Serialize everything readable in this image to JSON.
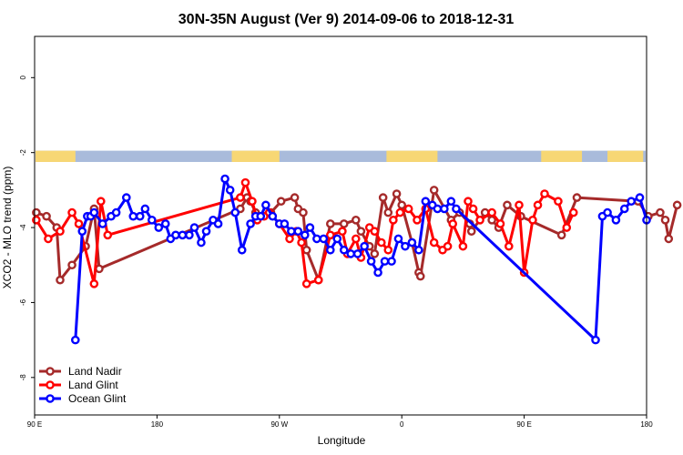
{
  "chart_data": {
    "type": "line",
    "title": "30N-35N August (Ver 9)   2014-09-06 to 2018-12-31",
    "xlabel": "Longitude",
    "ylabel": "XCO2 - MLO trend (ppm)",
    "x_tick_labels": [
      "90 E",
      "180",
      "90 W",
      "0",
      "90 E",
      "180"
    ],
    "y_tick_labels": [
      "0",
      "-2",
      "-4",
      "-6",
      "-8"
    ],
    "y_ticks": [
      0,
      -2,
      -4,
      -6,
      -8
    ],
    "xlim": [
      90,
      450
    ],
    "ylim": [
      -9.0,
      1.1
    ],
    "grid": false,
    "legend_position": "bottom-left",
    "land_strip": {
      "y_range": [
        -2.25,
        -1.95
      ],
      "land_color": "#F7D774",
      "ocean_color": "#A9BBDB",
      "land_segments": [
        [
          90,
          114
        ],
        [
          206,
          234
        ],
        [
          297,
          327
        ],
        [
          388,
          412
        ],
        [
          427,
          448
        ]
      ]
    },
    "series": [
      {
        "name": "Land Nadir",
        "color": "#A52A2A",
        "x": [
          91,
          97,
          103,
          105,
          112,
          120,
          125,
          128,
          211,
          215,
          217,
          220,
          222,
          229,
          235,
          243,
          245,
          248,
          250,
          257,
          264,
          272,
          279,
          282,
          287,
          290,
          295,
          298,
          303,
          306,
          312,
          316,
          317,
          325,
          335,
          340,
          346,
          347,
          355,
          359,
          363,
          368,
          376,
          400,
          409,
          445,
          451,
          458,
          461,
          463,
          468
        ],
        "y": [
          -3.6,
          -3.7,
          -4.0,
          -5.4,
          -5.0,
          -4.5,
          -3.5,
          -5.1,
          -3.5,
          -3.2,
          -3.3,
          -3.6,
          -3.7,
          -3.6,
          -3.3,
          -3.2,
          -3.5,
          -3.6,
          -4.6,
          -5.4,
          -3.9,
          -3.9,
          -3.8,
          -4.1,
          -4.5,
          -4.7,
          -3.2,
          -3.6,
          -3.1,
          -3.4,
          -4.4,
          -5.2,
          -5.3,
          -3.0,
          -3.8,
          -3.6,
          -3.9,
          -4.1,
          -3.6,
          -3.8,
          -4.0,
          -3.4,
          -3.7,
          -4.2,
          -3.2,
          -3.3,
          -3.7,
          -3.6,
          -3.8,
          -4.3,
          -3.4
        ]
      },
      {
        "name": "Land Glint",
        "color": "#FF0000",
        "x": [
          91,
          98,
          105,
          112,
          116,
          125,
          129,
          133,
          211,
          214,
          218,
          221,
          225,
          228,
          234,
          240,
          244,
          247,
          250,
          257,
          264,
          271,
          274,
          279,
          282,
          287,
          290,
          294,
          298,
          301,
          305,
          310,
          315,
          320,
          325,
          330,
          333,
          336,
          342,
          345,
          348,
          352,
          359,
          364,
          369,
          375,
          378,
          383,
          386,
          390,
          398,
          403,
          407
        ],
        "y": [
          -3.8,
          -4.3,
          -4.1,
          -3.6,
          -3.9,
          -5.5,
          -3.3,
          -4.2,
          -3.2,
          -2.8,
          -3.3,
          -3.8,
          -3.7,
          -3.6,
          -3.9,
          -4.3,
          -4.1,
          -4.4,
          -5.5,
          -5.4,
          -4.2,
          -4.1,
          -4.7,
          -4.3,
          -4.8,
          -4.0,
          -4.1,
          -4.4,
          -4.6,
          -3.8,
          -3.6,
          -3.5,
          -3.8,
          -3.5,
          -4.4,
          -4.6,
          -4.5,
          -3.9,
          -4.5,
          -3.3,
          -3.5,
          -3.8,
          -3.6,
          -3.9,
          -4.5,
          -3.4,
          -5.2,
          -3.8,
          -3.4,
          -3.1,
          -3.3,
          -4.0,
          -3.6
        ]
      },
      {
        "name": "Ocean Glint",
        "color": "#0000FF",
        "x": [
          114,
          118,
          121,
          123,
          125,
          130,
          135,
          138,
          144,
          148,
          152,
          155,
          159,
          163,
          167,
          170,
          173,
          177,
          181,
          184,
          188,
          191,
          195,
          198,
          202,
          205,
          208,
          212,
          217,
          220,
          223,
          226,
          230,
          234,
          237,
          241,
          245,
          249,
          252,
          256,
          260,
          264,
          268,
          272,
          276,
          280,
          284,
          288,
          292,
          296,
          300,
          304,
          308,
          312,
          316,
          320,
          324,
          327,
          331,
          335,
          338,
          420,
          424,
          427,
          432,
          437,
          441,
          446,
          450
        ],
        "y": [
          -7.0,
          -4.1,
          -3.7,
          -3.7,
          -3.6,
          -3.9,
          -3.7,
          -3.6,
          -3.2,
          -3.7,
          -3.7,
          -3.5,
          -3.8,
          -4.0,
          -3.9,
          -4.3,
          -4.2,
          -4.2,
          -4.2,
          -4.0,
          -4.4,
          -4.1,
          -3.8,
          -3.9,
          -2.7,
          -3.0,
          -3.6,
          -4.6,
          -3.9,
          -3.7,
          -3.7,
          -3.4,
          -3.7,
          -3.9,
          -3.9,
          -4.1,
          -4.1,
          -4.2,
          -4.0,
          -4.3,
          -4.3,
          -4.6,
          -4.3,
          -4.6,
          -4.7,
          -4.7,
          -4.5,
          -4.9,
          -5.2,
          -4.9,
          -4.9,
          -4.3,
          -4.5,
          -4.4,
          -4.6,
          -3.3,
          -3.4,
          -3.5,
          -3.5,
          -3.3,
          -3.5,
          -7.0,
          -3.7,
          -3.6,
          -3.8,
          -3.5,
          -3.3,
          -3.2,
          -3.8
        ]
      }
    ]
  }
}
